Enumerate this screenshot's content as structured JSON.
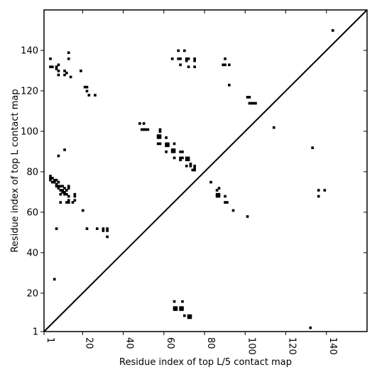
{
  "chart_data": {
    "type": "scatter",
    "title": "",
    "xlabel": "Residue index of top L/5 contact map",
    "ylabel": "Residue index of top L contact map",
    "xlim": [
      1,
      160
    ],
    "ylim": [
      1,
      160
    ],
    "x_ticks": [
      1,
      20,
      40,
      60,
      80,
      100,
      120,
      140
    ],
    "y_ticks": [
      1,
      20,
      40,
      60,
      80,
      100,
      120,
      140
    ],
    "grid": false,
    "legend": "none",
    "marker": "square",
    "colors": {
      "points": "#000000",
      "diagonal": "#000000",
      "frame": "#000000",
      "background": "#ffffff"
    },
    "diagonal": {
      "from": [
        1,
        1
      ],
      "to": [
        160,
        160
      ]
    },
    "series": [
      {
        "points": [
          [
            4,
            136
          ],
          [
            4,
            132
          ],
          [
            5,
            132
          ],
          [
            7,
            132
          ],
          [
            7,
            131
          ],
          [
            8,
            133
          ],
          [
            8,
            130
          ],
          [
            8,
            128
          ],
          [
            11,
            130
          ],
          [
            11,
            128
          ],
          [
            12,
            129
          ],
          [
            13,
            139
          ],
          [
            13,
            136
          ],
          [
            14,
            127
          ],
          [
            19,
            130
          ],
          [
            21,
            122
          ],
          [
            22,
            122
          ],
          [
            22,
            120
          ],
          [
            23,
            118
          ],
          [
            26,
            118
          ],
          [
            4,
            78
          ],
          [
            4,
            77
          ],
          [
            4,
            76
          ],
          [
            5,
            77
          ],
          [
            5,
            75
          ],
          [
            6,
            76
          ],
          [
            6,
            75
          ],
          [
            7,
            76
          ],
          [
            7,
            74
          ],
          [
            7,
            73
          ],
          [
            8,
            75
          ],
          [
            8,
            73
          ],
          [
            8,
            72
          ],
          [
            9,
            73
          ],
          [
            9,
            71
          ],
          [
            9,
            69
          ],
          [
            10,
            73
          ],
          [
            10,
            71
          ],
          [
            10,
            70
          ],
          [
            11,
            72
          ],
          [
            11,
            70
          ],
          [
            11,
            69
          ],
          [
            12,
            71
          ],
          [
            12,
            69
          ],
          [
            13,
            73
          ],
          [
            13,
            72
          ],
          [
            13,
            68
          ],
          [
            13,
            66
          ],
          [
            13,
            65
          ],
          [
            12,
            65
          ],
          [
            16,
            69
          ],
          [
            16,
            68
          ],
          [
            16,
            66
          ],
          [
            15,
            65
          ],
          [
            8,
            88
          ],
          [
            11,
            91
          ],
          [
            9,
            65
          ],
          [
            20,
            61
          ],
          [
            22,
            52
          ],
          [
            7,
            52
          ],
          [
            27,
            52
          ],
          [
            30,
            52
          ],
          [
            30,
            51
          ],
          [
            32,
            52
          ],
          [
            32,
            51
          ],
          [
            32,
            48
          ],
          [
            6,
            27
          ],
          [
            48,
            104
          ],
          [
            50,
            104
          ],
          [
            49,
            101
          ],
          [
            50,
            101
          ],
          [
            51,
            101
          ],
          [
            52,
            101
          ],
          [
            58,
            101
          ],
          [
            58,
            100
          ],
          [
            57,
            98
          ],
          [
            58,
            98
          ],
          [
            57,
            97
          ],
          [
            58,
            97
          ],
          [
            57,
            94
          ],
          [
            58,
            94
          ],
          [
            61,
            97
          ],
          [
            61,
            94
          ],
          [
            61,
            93
          ],
          [
            62,
            94
          ],
          [
            62,
            93
          ],
          [
            61,
            90
          ],
          [
            64,
            91
          ],
          [
            64,
            90
          ],
          [
            65,
            91
          ],
          [
            65,
            90
          ],
          [
            65,
            94
          ],
          [
            65,
            87
          ],
          [
            68,
            90
          ],
          [
            69,
            90
          ],
          [
            68,
            87
          ],
          [
            69,
            87
          ],
          [
            68,
            86
          ],
          [
            71,
            87
          ],
          [
            71,
            86
          ],
          [
            72,
            87
          ],
          [
            72,
            86
          ],
          [
            71,
            83
          ],
          [
            73,
            84
          ],
          [
            73,
            83
          ],
          [
            75,
            83
          ],
          [
            75,
            82
          ],
          [
            74,
            81
          ],
          [
            75,
            81
          ],
          [
            64,
            136
          ],
          [
            67,
            140
          ],
          [
            67,
            136
          ],
          [
            68,
            136
          ],
          [
            68,
            133
          ],
          [
            70,
            140
          ],
          [
            71,
            136
          ],
          [
            71,
            135
          ],
          [
            72,
            136
          ],
          [
            72,
            132
          ],
          [
            75,
            136
          ],
          [
            75,
            135
          ],
          [
            75,
            132
          ],
          [
            89,
            133
          ],
          [
            90,
            133
          ],
          [
            90,
            136
          ],
          [
            92,
            133
          ],
          [
            92,
            123
          ],
          [
            83,
            75
          ],
          [
            86,
            71
          ],
          [
            86,
            69
          ],
          [
            86,
            68
          ],
          [
            87,
            72
          ],
          [
            87,
            69
          ],
          [
            87,
            68
          ],
          [
            90,
            68
          ],
          [
            90,
            65
          ],
          [
            91,
            65
          ],
          [
            94,
            61
          ],
          [
            101,
            58
          ],
          [
            101,
            117
          ],
          [
            102,
            117
          ],
          [
            102,
            114
          ],
          [
            103,
            114
          ],
          [
            104,
            114
          ],
          [
            105,
            114
          ],
          [
            114,
            102
          ],
          [
            65,
            16
          ],
          [
            65,
            13
          ],
          [
            65,
            12
          ],
          [
            66,
            13
          ],
          [
            66,
            12
          ],
          [
            68,
            13
          ],
          [
            68,
            12
          ],
          [
            69,
            16
          ],
          [
            69,
            13
          ],
          [
            69,
            12
          ],
          [
            70,
            9
          ],
          [
            72,
            9
          ],
          [
            72,
            8
          ],
          [
            73,
            9
          ],
          [
            73,
            8
          ],
          [
            133,
            92
          ],
          [
            132,
            3
          ],
          [
            136,
            71
          ],
          [
            136,
            68
          ],
          [
            139,
            71
          ],
          [
            143,
            150
          ]
        ]
      }
    ]
  }
}
